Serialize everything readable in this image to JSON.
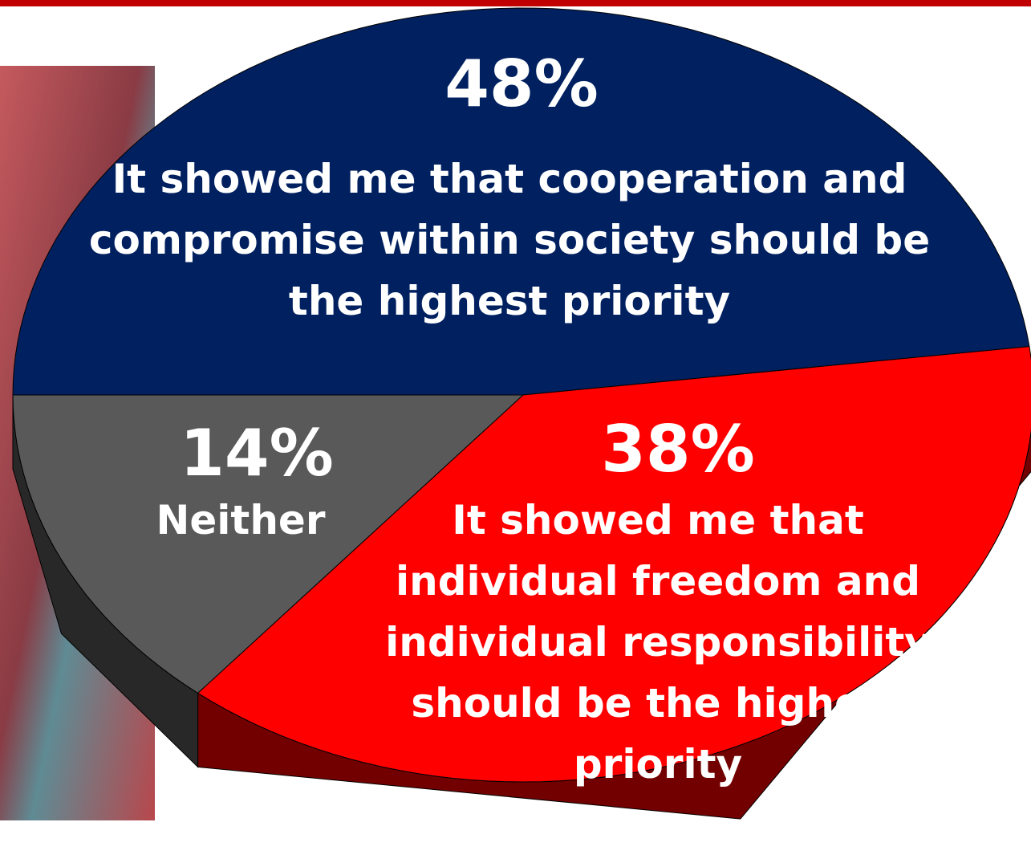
{
  "chart_data": {
    "type": "pie",
    "categories": [
      "It showed me that cooperation and compromise within society should be the highest priority",
      "It showed me that individual freedom and individual responsibility should be the highest priority",
      "Neither"
    ],
    "values": [
      48,
      38,
      14
    ],
    "value_labels": [
      "48%",
      "38%",
      "14%"
    ],
    "colors": [
      "#002060",
      "#ff0000",
      "#595959"
    ]
  }
}
